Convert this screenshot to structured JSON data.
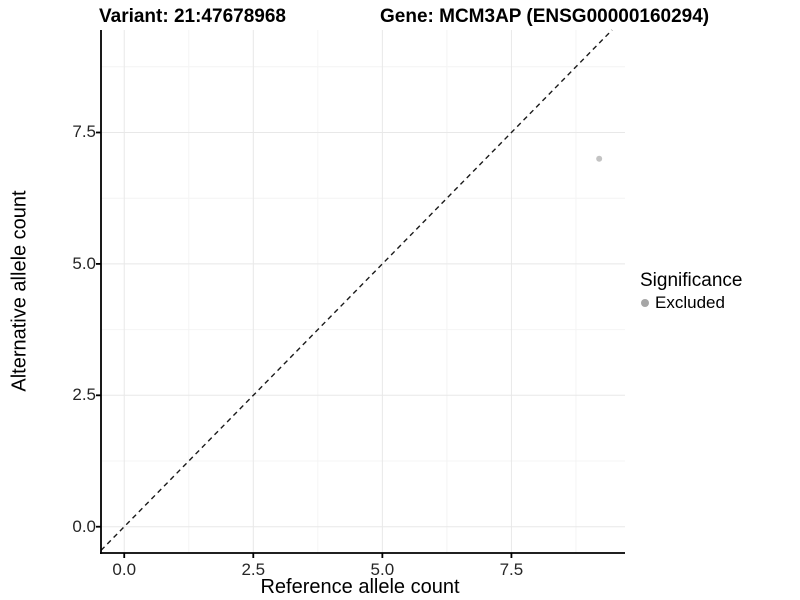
{
  "chart_data": {
    "type": "scatter",
    "title_left": "Variant: 21:47678968",
    "title_right": "Gene: MCM3AP (ENSG00000160294)",
    "xlabel": "Reference allele count",
    "ylabel": "Alternative allele count",
    "xlim": [
      -0.45,
      9.7
    ],
    "ylim": [
      -0.5,
      9.45
    ],
    "x_ticks": [
      0,
      2.5,
      5,
      7.5
    ],
    "y_ticks": [
      0,
      2.5,
      5,
      7.5
    ],
    "x_minor_ticks": [
      1.25,
      3.75,
      6.25,
      8.75
    ],
    "y_minor_ticks": [
      1.25,
      3.75,
      6.25,
      8.75
    ],
    "grid": "major+minor",
    "legend_position": "right",
    "reference_line": {
      "kind": "y=x identity",
      "style": "dashed",
      "color": "#1a1a1a"
    },
    "series": [
      {
        "name": "Excluded",
        "color": "#c3c3c3",
        "marker_radius": 3,
        "points": [
          [
            9.2,
            7.0
          ]
        ]
      }
    ],
    "legend": {
      "title": "Significance",
      "entries": [
        {
          "label": "Excluded",
          "key_color": "#a6a6a6"
        }
      ]
    }
  },
  "colors": {
    "background": "#ffffff",
    "grid_major": "#e8e8e8",
    "grid_minor": "#f4f4f4",
    "axis_line": "#000000",
    "tick_text": "#262626",
    "title_text": "#000000"
  }
}
